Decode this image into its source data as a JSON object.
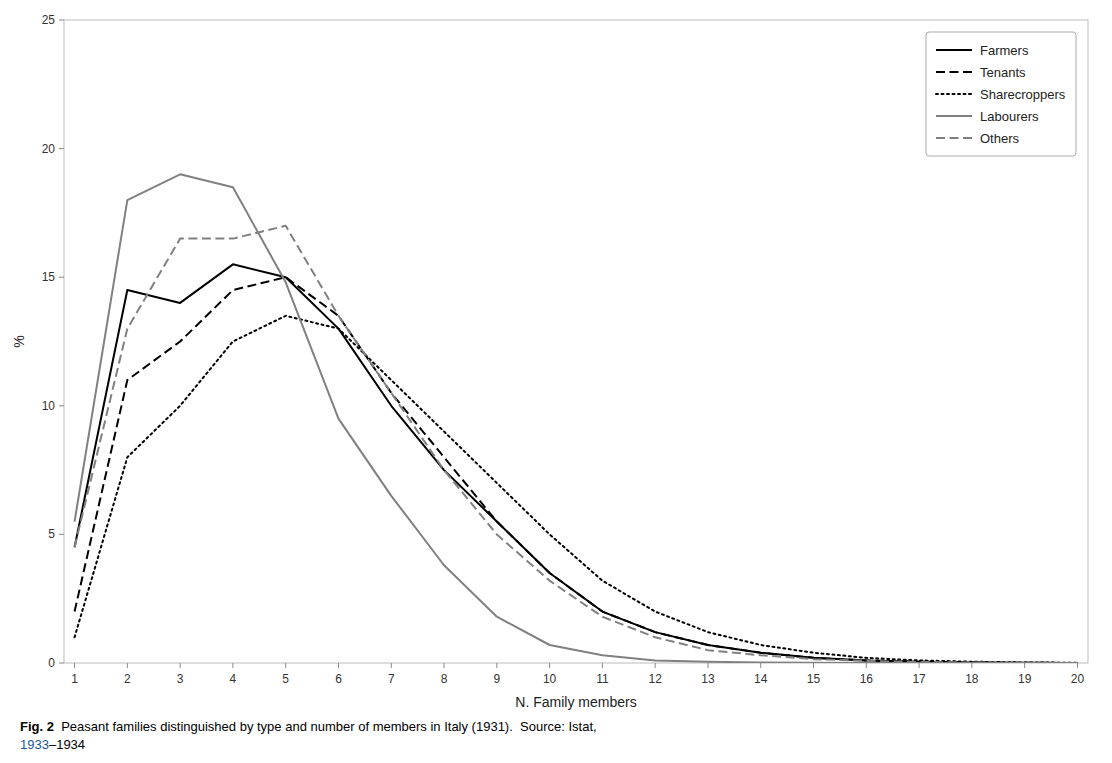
{
  "chart_data": {
    "type": "line",
    "xlabel": "N. Family members",
    "ylabel": "%",
    "x": [
      1,
      2,
      3,
      4,
      5,
      6,
      7,
      8,
      9,
      10,
      11,
      12,
      13,
      14,
      15,
      16,
      17,
      18,
      19,
      20
    ],
    "xlim": [
      0.8,
      20.2
    ],
    "ylim": [
      0,
      25
    ],
    "xticks": [
      1,
      2,
      3,
      4,
      5,
      6,
      7,
      8,
      9,
      10,
      11,
      12,
      13,
      14,
      15,
      16,
      17,
      18,
      19,
      20
    ],
    "yticks": [
      0,
      5,
      10,
      15,
      20,
      25
    ],
    "grid": false,
    "legend": "upper right",
    "series": [
      {
        "name": "Farmers",
        "color": "#000000",
        "line_style": "solid",
        "values": [
          4.5,
          14.5,
          14.0,
          15.5,
          15.0,
          13.0,
          10.0,
          7.5,
          5.5,
          3.5,
          2.0,
          1.2,
          0.7,
          0.4,
          0.2,
          0.1,
          0.05,
          0.02,
          0.01,
          0.0
        ]
      },
      {
        "name": "Tenants",
        "color": "#000000",
        "line_style": "dashed",
        "values": [
          2.0,
          11.0,
          12.5,
          14.5,
          15.0,
          13.5,
          10.5,
          8.0,
          5.5,
          3.5,
          2.0,
          1.2,
          0.7,
          0.4,
          0.2,
          0.1,
          0.05,
          0.02,
          0.01,
          0.0
        ]
      },
      {
        "name": "Sharecroppers",
        "color": "#000000",
        "line_style": "dotted",
        "values": [
          1.0,
          8.0,
          10.0,
          12.5,
          13.5,
          13.0,
          11.0,
          9.0,
          7.0,
          5.0,
          3.2,
          2.0,
          1.2,
          0.7,
          0.4,
          0.2,
          0.1,
          0.05,
          0.02,
          0.01
        ]
      },
      {
        "name": "Labourers",
        "color": "#808080",
        "line_style": "solid",
        "values": [
          5.5,
          18.0,
          19.0,
          18.5,
          14.8,
          9.5,
          6.5,
          3.8,
          1.8,
          0.7,
          0.3,
          0.1,
          0.05,
          0.02,
          0.01,
          0.0,
          0.0,
          0.0,
          0.0,
          0.0
        ]
      },
      {
        "name": "Others",
        "color": "#808080",
        "line_style": "dashed",
        "values": [
          4.5,
          13.0,
          16.5,
          16.5,
          17.0,
          13.5,
          10.5,
          7.5,
          5.0,
          3.2,
          1.8,
          1.0,
          0.5,
          0.3,
          0.15,
          0.08,
          0.04,
          0.02,
          0.01,
          0.0
        ]
      }
    ],
    "annotations": [
      {
        "text": "Fig. 2"
      },
      {
        "text": "  Peasant families distinguished by type and number of members in Italy (1931).  Source: Istat,"
      },
      {
        "text": "1933",
        "color": "#1a56a0"
      },
      {
        "text": "–1934"
      }
    ]
  }
}
